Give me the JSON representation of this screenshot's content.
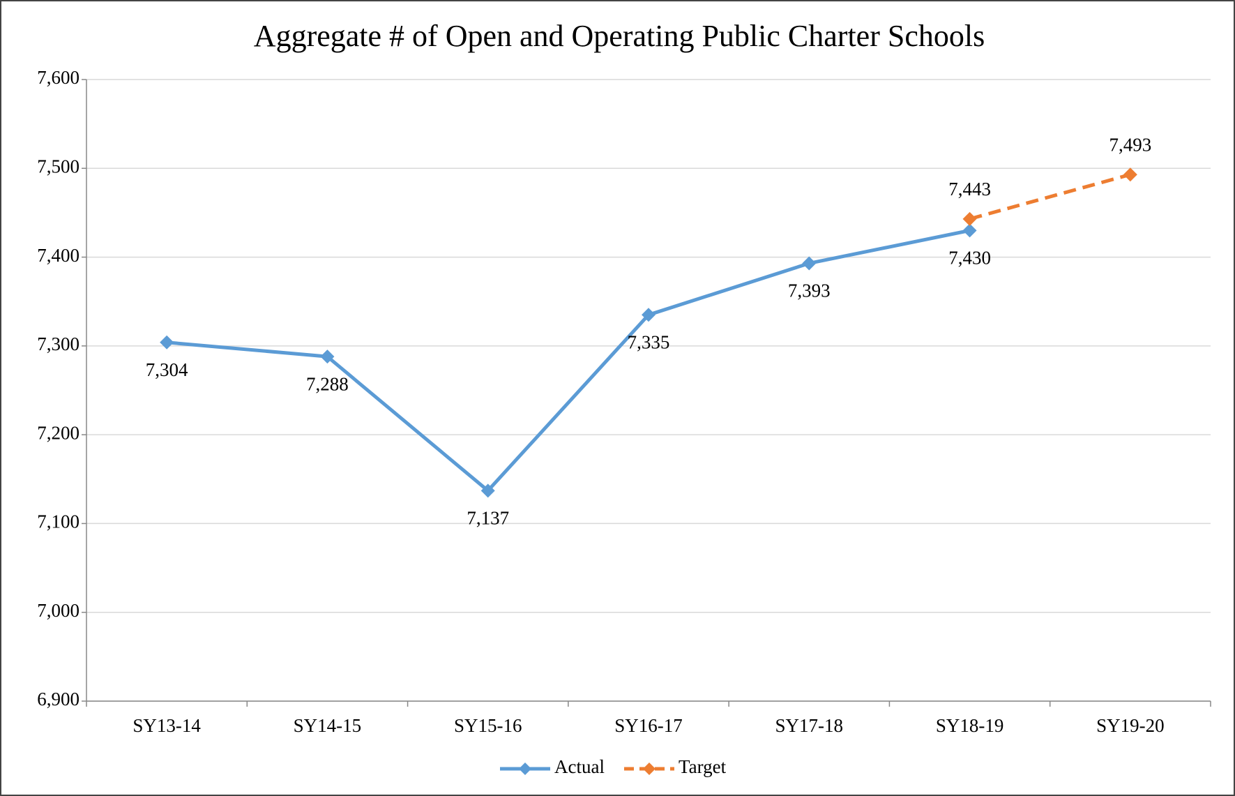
{
  "chart_data": {
    "type": "line",
    "title": "Aggregate # of Open and Operating Public Charter Schools",
    "categories": [
      "SY13-14",
      "SY14-15",
      "SY15-16",
      "SY16-17",
      "SY17-18",
      "SY18-19",
      "SY19-20"
    ],
    "series": [
      {
        "name": "Actual",
        "color": "#5b9bd5",
        "line_style": "solid",
        "values": [
          7304,
          7288,
          7137,
          7335,
          7393,
          7430,
          null
        ],
        "value_labels": [
          "7,304",
          "7,288",
          "7,137",
          "7,335",
          "7,393",
          "7,430",
          null
        ]
      },
      {
        "name": "Target",
        "color": "#ed7d31",
        "line_style": "dashed",
        "values": [
          null,
          null,
          null,
          null,
          null,
          7443,
          7493
        ],
        "value_labels": [
          null,
          null,
          null,
          null,
          null,
          "7,443",
          "7,493"
        ]
      }
    ],
    "ylim": [
      6900,
      7600
    ],
    "yticks": [
      {
        "value": 6900,
        "label": "6,900"
      },
      {
        "value": 7000,
        "label": "7,000"
      },
      {
        "value": 7100,
        "label": "7,100"
      },
      {
        "value": 7200,
        "label": "7,200"
      },
      {
        "value": 7300,
        "label": "7,300"
      },
      {
        "value": 7400,
        "label": "7,400"
      },
      {
        "value": 7500,
        "label": "7,500"
      },
      {
        "value": 7600,
        "label": "7,600"
      }
    ],
    "grid": true,
    "legend": "bottom"
  }
}
